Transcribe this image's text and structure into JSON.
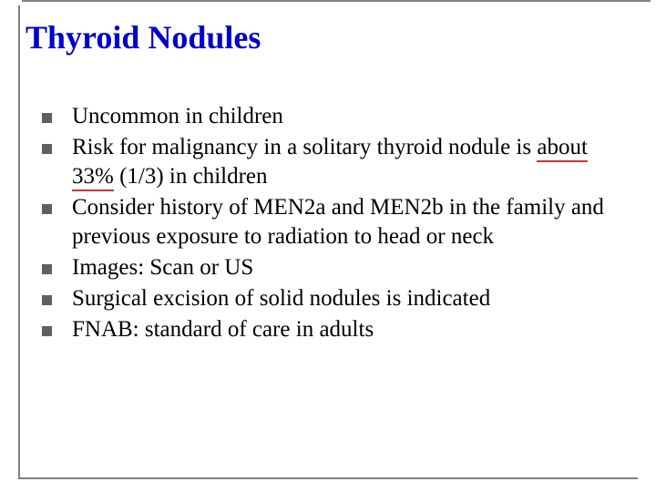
{
  "slide": {
    "title": "Thyroid Nodules",
    "title_color": "#0000cc",
    "title_fontsize": 36,
    "frame_color": "#808080",
    "background_color": "#ffffff",
    "bullet_marker_color": "#5f5f5f",
    "bullet_marker_size": 11,
    "text_color": "#000000",
    "text_fontsize": 25,
    "underline_color": "#cc3333",
    "bullets": [
      {
        "text": "Uncommon in children"
      },
      {
        "pre": "Risk for malignancy in a solitary thyroid nodule is ",
        "highlight": "about 33%",
        "post": " (1/3) in children"
      },
      {
        "text": "Consider history of MEN2a and MEN2b in the family and previous exposure to radiation to head or neck"
      },
      {
        "text": "Images: Scan or US"
      },
      {
        "text": "Surgical excision of solid nodules is indicated"
      },
      {
        "text": "FNAB: standard of care in adults"
      }
    ]
  }
}
